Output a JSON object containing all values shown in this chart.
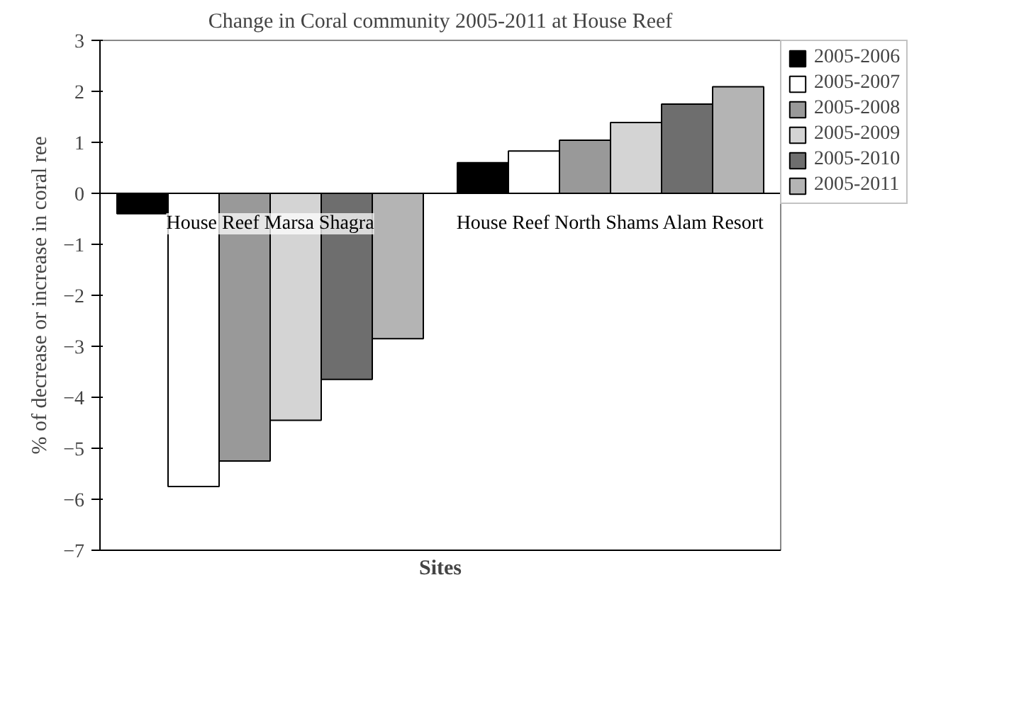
{
  "chart_data": {
    "type": "bar",
    "title": "Change in Coral community 2005-2011 at House Reef",
    "xlabel": "Sites",
    "ylabel": "% of decrease or increase in coral ree",
    "categories": [
      "House Reef Marsa Shagra",
      "House Reef North Shams Alam Resort"
    ],
    "series": [
      {
        "name": "2005-2006",
        "color": "#000000",
        "values": [
          -0.4,
          0.6
        ]
      },
      {
        "name": "2005-2007",
        "color": "#ffffff",
        "values": [
          -5.75,
          0.83
        ]
      },
      {
        "name": "2005-2008",
        "color": "#999999",
        "values": [
          -5.25,
          1.04
        ]
      },
      {
        "name": "2005-2009",
        "color": "#d4d4d4",
        "values": [
          -4.45,
          1.39
        ]
      },
      {
        "name": "2005-2010",
        "color": "#6e6e6e",
        "values": [
          -3.65,
          1.75
        ]
      },
      {
        "name": "2005-2011",
        "color": "#b4b4b4",
        "values": [
          -2.85,
          2.09
        ]
      }
    ],
    "ylim": [
      -7,
      3
    ],
    "yticks": [
      -7,
      -6,
      -5,
      -4,
      -3,
      -2,
      -1,
      0,
      1,
      2,
      3
    ],
    "grid": false,
    "legend": "right"
  }
}
